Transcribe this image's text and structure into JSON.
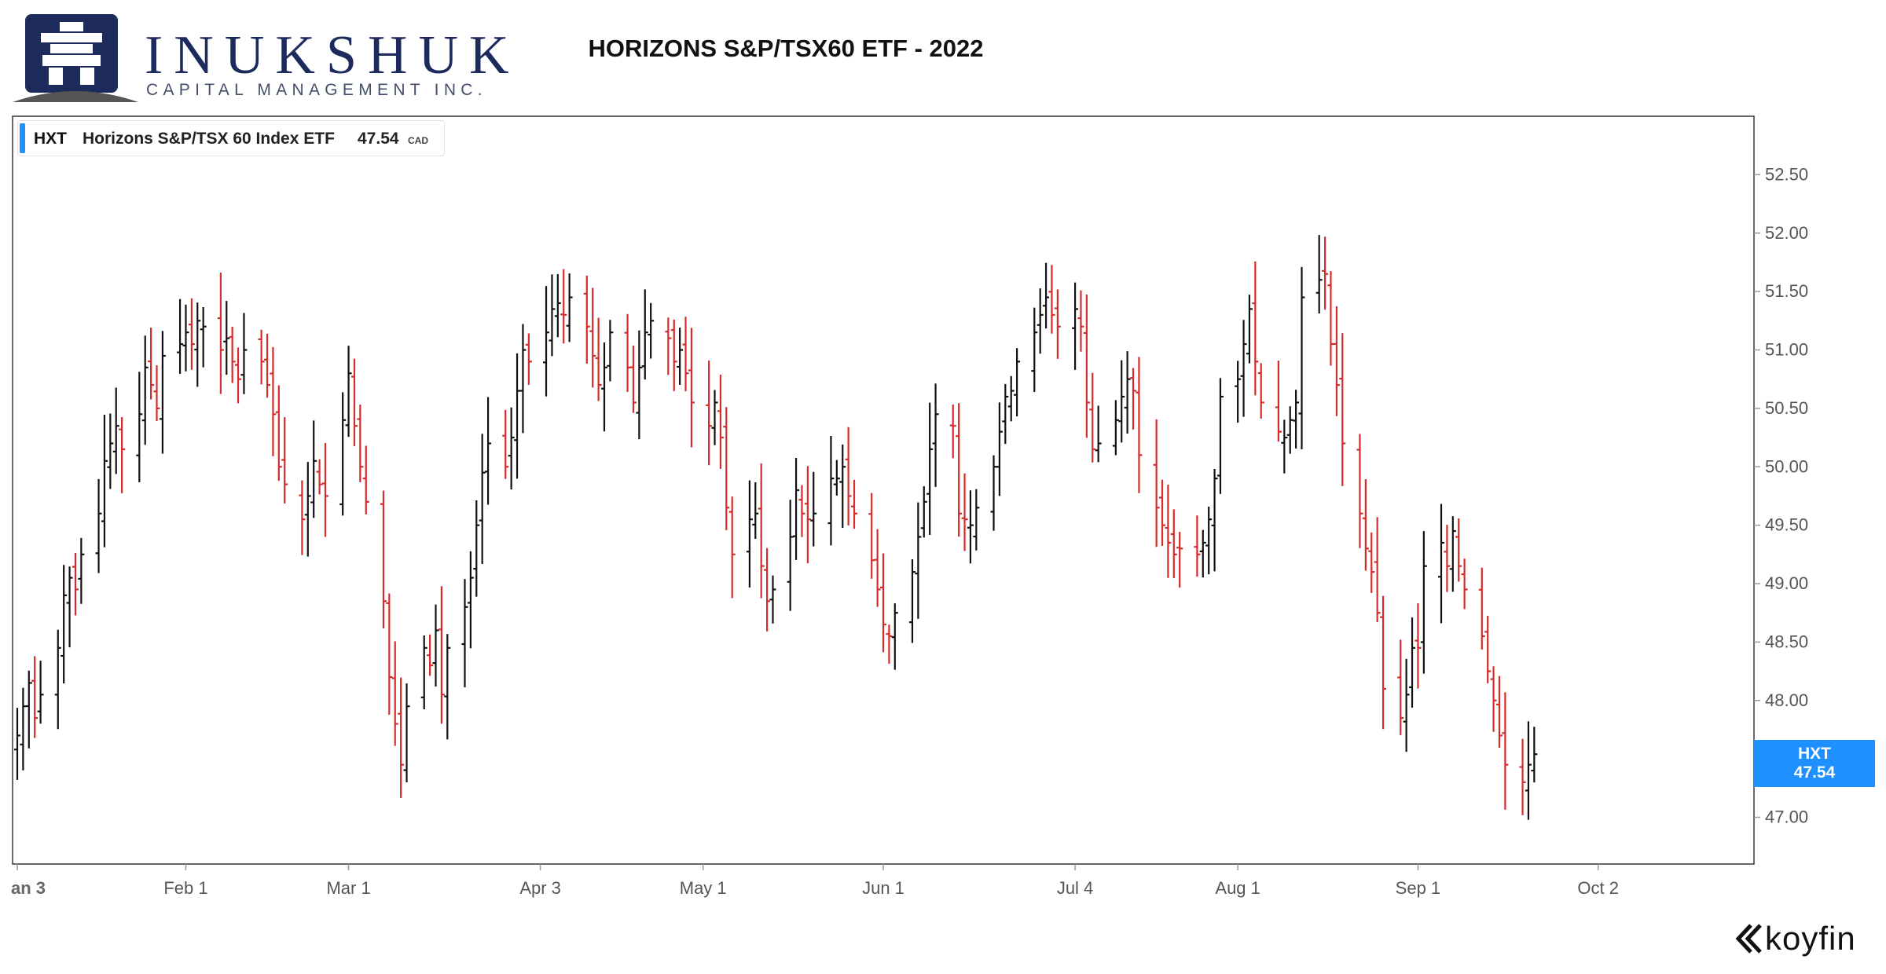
{
  "branding": {
    "name": "INUKSHUK",
    "subtitle": "CAPITAL MANAGEMENT INC.",
    "icon": "inukshuk-logo-icon",
    "watermark": "koyfin"
  },
  "title": "HORIZONS S&P/TSX60 ETF - 2022",
  "legend": {
    "ticker": "HXT",
    "name": "Horizons S&P/TSX 60 Index ETF",
    "price": "47.54",
    "currency": "CAD"
  },
  "price_tag": {
    "ticker": "HXT",
    "price": "47.54"
  },
  "first_tick_label": "an 3",
  "colors": {
    "up": "#111111",
    "down": "#d62b2b",
    "accent": "#1e90ff",
    "brand": "#1c2a5c"
  },
  "chart_data": {
    "type": "ohlc-bar",
    "title": "HORIZONS S&P/TSX60 ETF - 2022",
    "xlabel": "",
    "ylabel": "",
    "ylim": [
      46.6,
      53.0
    ],
    "y_ticks": [
      47.0,
      47.5,
      48.0,
      48.5,
      49.0,
      49.5,
      50.0,
      50.5,
      51.0,
      51.5,
      52.0,
      52.5
    ],
    "y_tick_labels": [
      "47.00",
      "",
      "48.00",
      "48.50",
      "49.00",
      "49.50",
      "50.00",
      "50.50",
      "51.00",
      "51.50",
      "52.00",
      "52.50"
    ],
    "x_ticks": [
      {
        "label": "",
        "date": "2022-01-03"
      },
      {
        "label": "Feb 1",
        "date": "2022-02-01"
      },
      {
        "label": "Mar 1",
        "date": "2022-03-01"
      },
      {
        "label": "Apr 3",
        "date": "2022-04-03"
      },
      {
        "label": "May 1",
        "date": "2022-05-01"
      },
      {
        "label": "Jun 1",
        "date": "2022-06-01"
      },
      {
        "label": "Jul 4",
        "date": "2022-07-04"
      },
      {
        "label": "Aug 1",
        "date": "2022-08-01"
      },
      {
        "label": "Sep 1",
        "date": "2022-09-01"
      },
      {
        "label": "Oct 2",
        "date": "2022-10-02"
      }
    ],
    "grid": false,
    "last_close": 47.54,
    "series": [
      {
        "values": [
          47.7,
          47.95,
          48.15,
          47.85,
          48.05,
          48.45,
          48.9,
          49.05,
          48.95,
          49.25,
          49.6,
          50.05,
          50.2,
          50.35,
          50.15,
          50.45,
          50.85,
          50.7,
          50.5,
          50.95,
          51.05,
          51.15,
          51.05,
          51.25,
          51.2,
          51.0,
          51.1,
          50.9,
          50.75,
          51.0,
          50.9,
          50.7,
          50.45,
          50.0,
          49.85,
          49.55,
          49.75,
          50.05,
          49.85,
          49.75,
          50.4,
          50.8,
          50.35,
          50.0,
          49.7,
          48.85,
          48.2,
          47.8,
          47.45,
          47.95,
          48.45,
          48.3,
          48.6,
          48.05,
          48.45,
          48.8,
          49.05,
          49.5,
          49.95,
          50.2,
          50.0,
          50.25,
          50.65,
          51.0,
          50.9,
          51.15,
          51.35,
          51.4,
          51.3,
          51.45,
          51.2,
          50.95,
          50.7,
          50.85,
          51.15,
          50.85,
          50.55,
          50.85,
          51.15,
          51.25,
          51.1,
          50.9,
          51.0,
          50.8,
          50.55,
          50.35,
          50.55,
          50.25,
          49.65,
          49.25,
          49.55,
          49.6,
          49.15,
          48.85,
          48.95,
          49.4,
          49.8,
          49.6,
          49.55,
          49.6,
          49.9,
          49.9,
          50.0,
          49.75,
          49.6,
          49.2,
          48.95,
          48.65,
          48.55,
          48.75,
          49.1,
          49.4,
          49.7,
          50.15,
          50.45,
          50.35,
          49.6,
          49.55,
          49.5,
          49.65,
          50.0,
          50.3,
          50.6,
          50.65,
          50.9,
          51.15,
          51.3,
          51.45,
          51.3,
          51.2,
          51.35,
          51.2,
          50.55,
          50.15,
          50.2,
          50.4,
          50.6,
          50.75,
          50.65,
          50.1,
          49.65,
          49.5,
          49.35,
          49.25,
          49.3,
          49.25,
          49.35,
          49.55,
          49.9,
          50.6,
          50.75,
          51.05,
          51.35,
          50.9,
          50.55,
          50.3,
          50.25,
          50.4,
          50.55,
          51.45,
          51.6,
          51.65,
          51.05,
          50.7,
          50.2,
          49.6,
          49.3,
          49.1,
          48.75,
          48.1,
          47.85,
          48.05,
          48.45,
          48.45,
          49.15,
          49.35,
          49.15,
          49.45,
          49.15,
          48.95,
          48.55,
          48.25,
          48.0,
          47.7,
          47.45,
          47.3,
          47.45,
          47.54
        ]
      }
    ]
  }
}
